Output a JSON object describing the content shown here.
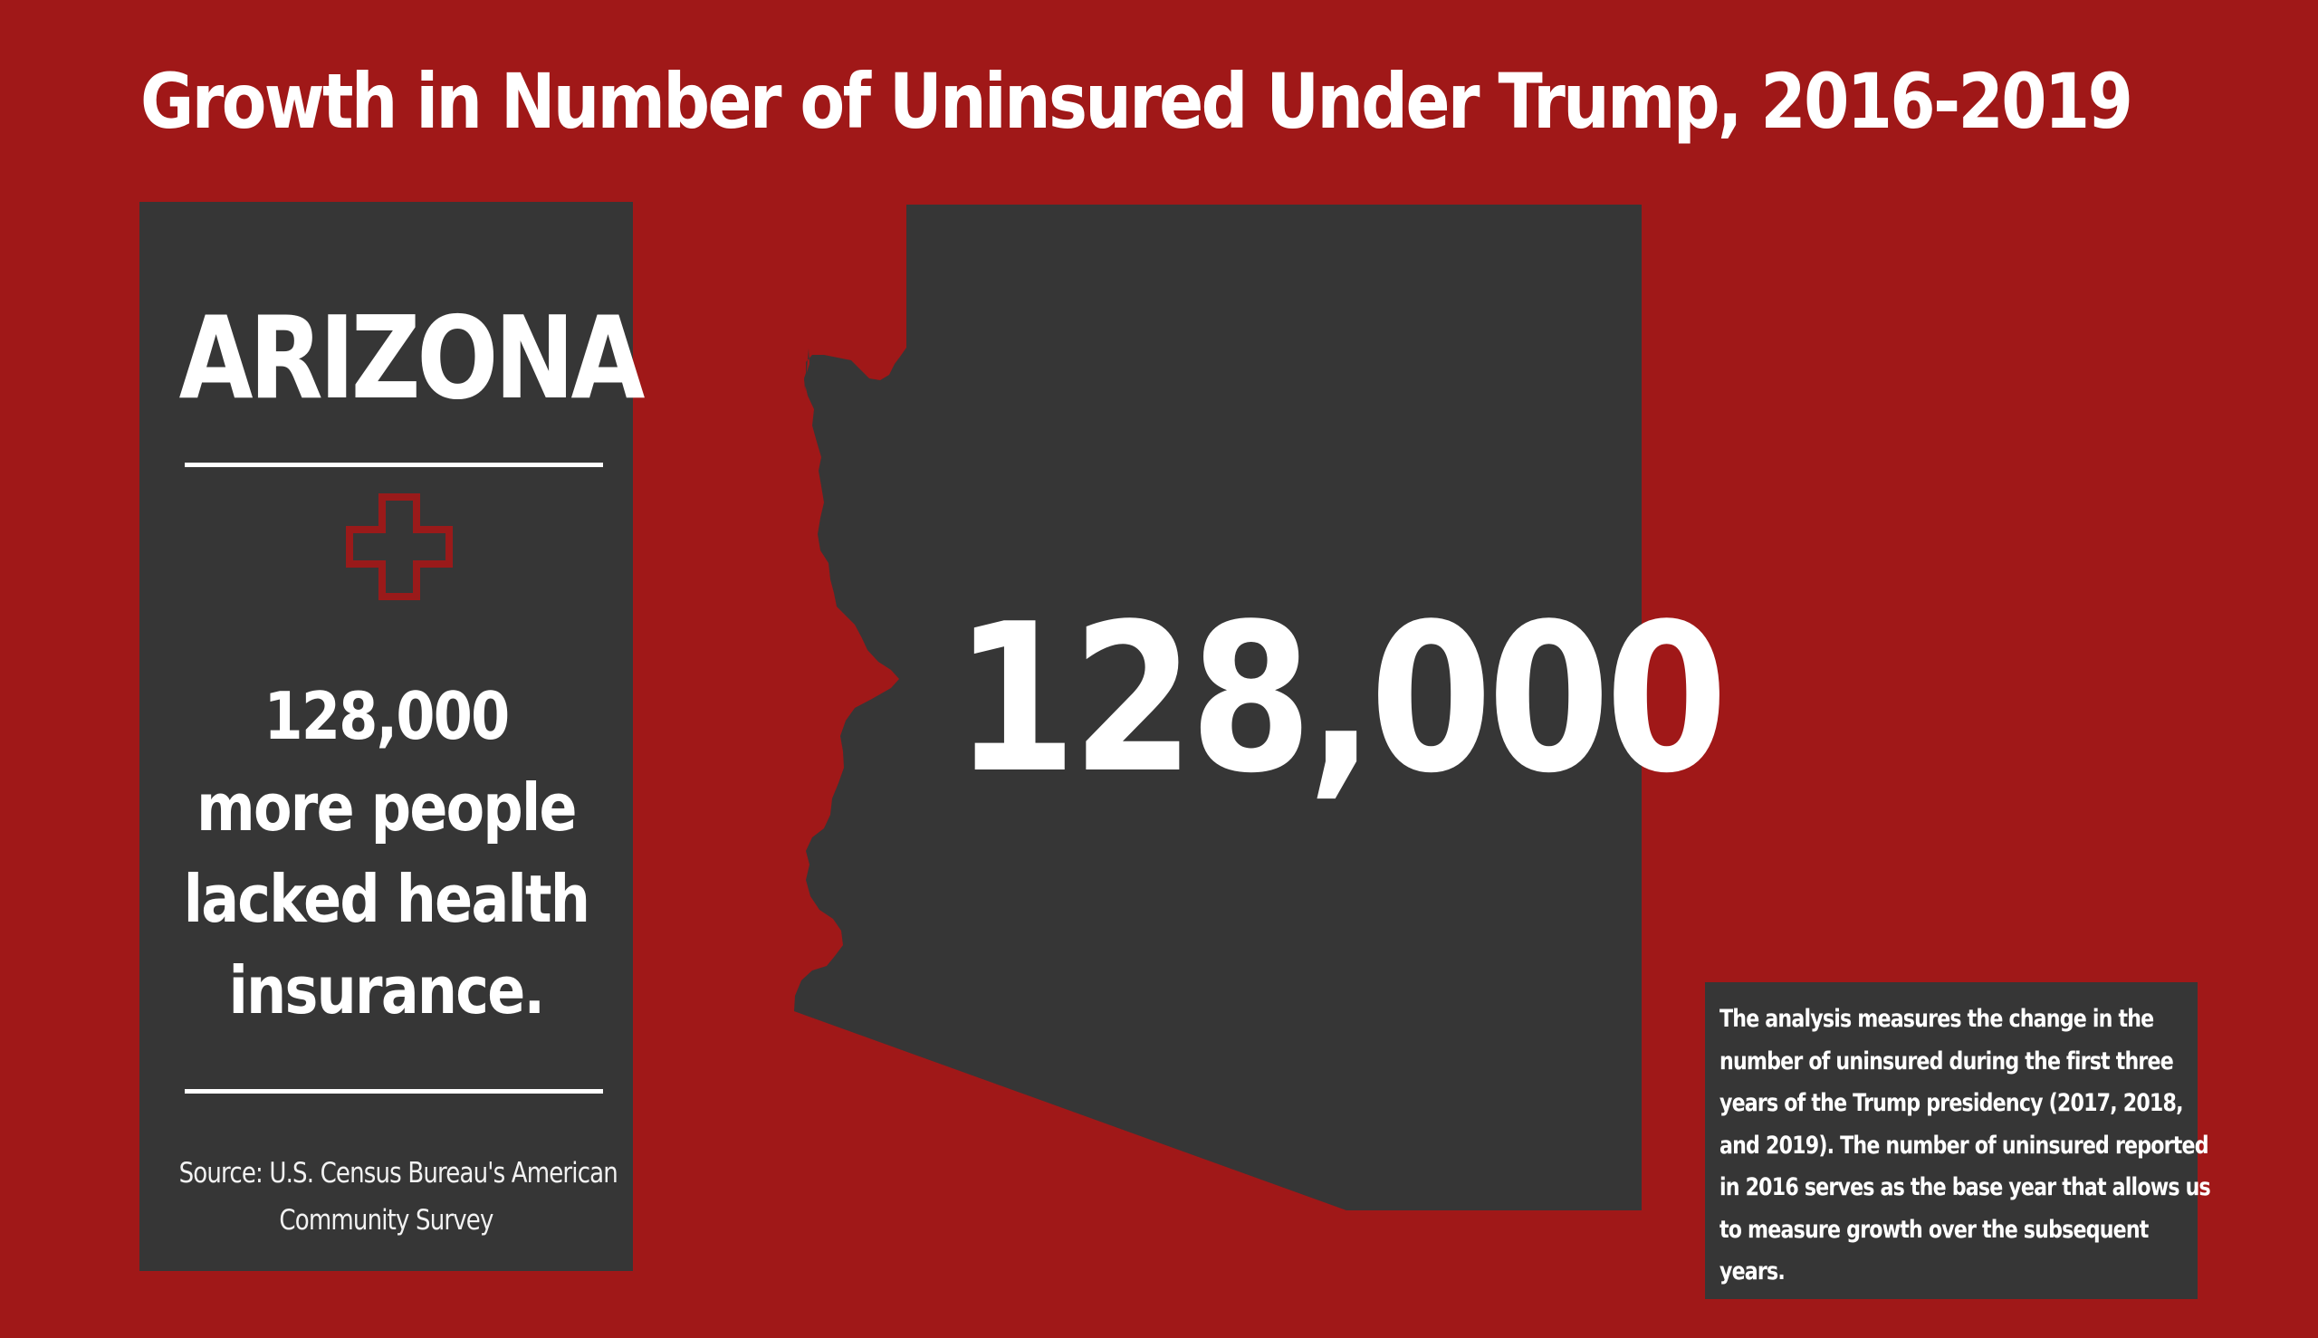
{
  "title": "Growth in Number of Uninsured Under Trump, 2016-2019",
  "panel": {
    "state": "ARIZONA",
    "icon": "medical-cross-icon",
    "statement_lines": [
      "128,000",
      "more people",
      "lacked health",
      "insurance."
    ],
    "source_lines": [
      "Source: U.S. Census Bureau's American",
      "Community Survey"
    ]
  },
  "map": {
    "icon": "arizona-state-silhouette",
    "value": "128,000"
  },
  "note": {
    "lines": [
      "The analysis measures the change in the",
      "number of uninsured during the  first three",
      "years of the Trump presidency (2017, 2018,",
      "and 2019). The number of uninsured reported",
      "in 2016 serves as the base year that allows us",
      "to measure growth over the subsequent",
      "years."
    ]
  },
  "colors": {
    "background": "#a01818",
    "panel": "#363636",
    "text": "#ffffff",
    "accent": "#9a1a1a"
  }
}
